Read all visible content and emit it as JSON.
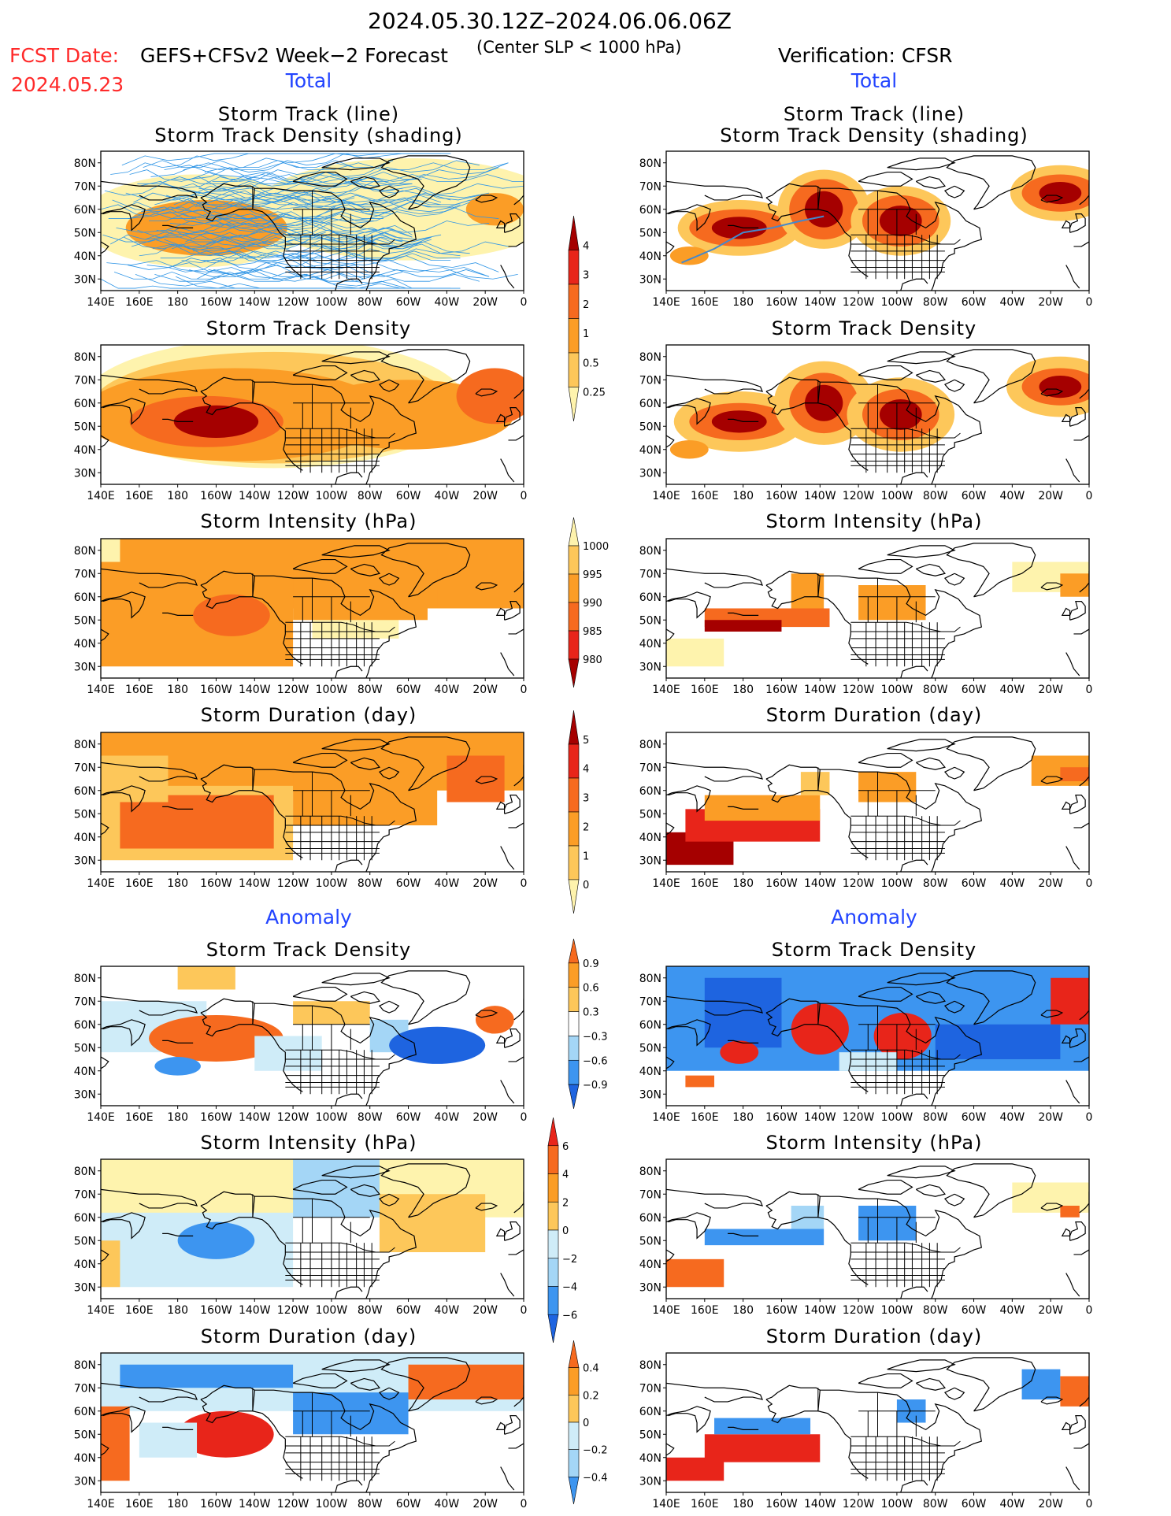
{
  "header": {
    "period": "2024.05.30.12Z–2024.06.06.06Z",
    "fcst_label": "FCST Date:",
    "fcst_date": "2024.05.23",
    "forecast_title": "GEFS+CFSv2 Week−2 Forecast",
    "center_note": "(Center SLP < 1000 hPa)",
    "verification": "Verification: CFSR"
  },
  "sections": {
    "total": "Total",
    "anomaly": "Anomaly"
  },
  "panel_titles": {
    "track_line": "Storm Track (line)",
    "track_shading": "Storm Track Density (shading)",
    "density": "Storm Track Density",
    "intensity": "Storm Intensity (hPa)",
    "duration": "Storm Duration (day)"
  },
  "axes": {
    "lon_labels": [
      "140E",
      "160E",
      "180",
      "160W",
      "140W",
      "120W",
      "100W",
      "80W",
      "60W",
      "40W",
      "20W",
      "0"
    ],
    "lat_labels": [
      "80N",
      "70N",
      "60N",
      "50N",
      "40N",
      "30N"
    ]
  },
  "colorbars": {
    "density_total": [
      "4",
      "3",
      "2",
      "1",
      "0.5",
      "0.25"
    ],
    "intensity_total": [
      "1000",
      "995",
      "990",
      "985",
      "980"
    ],
    "duration_total": [
      "5",
      "4",
      "3",
      "2",
      "1",
      "0"
    ],
    "density_anom": [
      "0.9",
      "0.6",
      "0.3",
      "−0.3",
      "−0.6",
      "−0.9"
    ],
    "intensity_anom": [
      "6",
      "4",
      "2",
      "0",
      "−2",
      "−4",
      "−6"
    ],
    "duration_anom": [
      "0.4",
      "0.2",
      "0",
      "−0.2",
      "−0.4"
    ]
  },
  "colors": {
    "dark_red": "#a50000",
    "red": "#e8251a",
    "orange_red": "#f66a1f",
    "orange": "#fb9d26",
    "light_orange": "#fdc75a",
    "pale_yellow": "#fef3ad",
    "blue_dark": "#1e64e0",
    "blue": "#3d95f0",
    "blue_light": "#a4d6f6",
    "blue_pale": "#cfecf8",
    "track": "#2f95e6"
  }
}
